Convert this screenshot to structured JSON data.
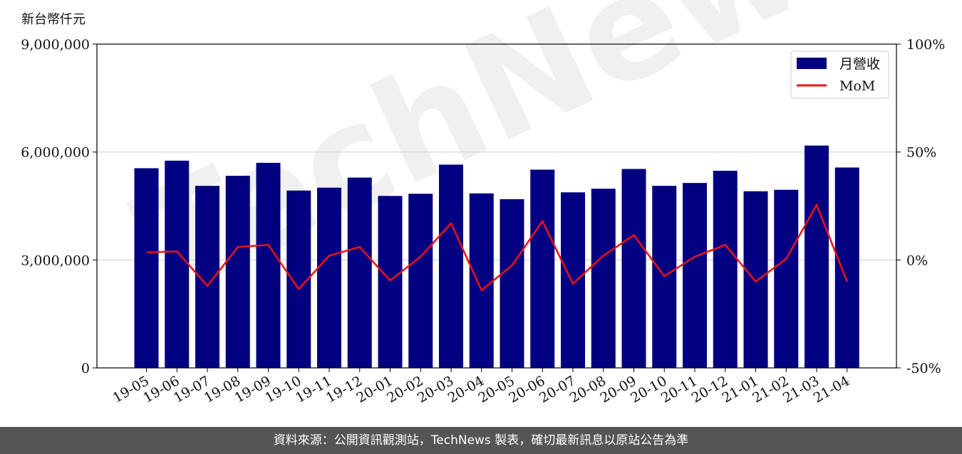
{
  "chart_data": {
    "type": "bar",
    "ylabel_left": "新台幣仟元",
    "categories": [
      "19-05",
      "19-06",
      "19-07",
      "19-08",
      "19-09",
      "19-10",
      "19-11",
      "19-12",
      "20-01",
      "20-02",
      "20-03",
      "20-04",
      "20-05",
      "20-06",
      "20-07",
      "20-08",
      "20-09",
      "20-10",
      "20-11",
      "20-12",
      "21-01",
      "21-02",
      "21-03",
      "21-04"
    ],
    "series": [
      {
        "name": "月營收",
        "type": "bar",
        "axis": "left",
        "values": [
          5550000,
          5760000,
          5060000,
          5340000,
          5700000,
          4930000,
          5010000,
          5290000,
          4780000,
          4840000,
          5650000,
          4850000,
          4690000,
          5510000,
          4880000,
          4980000,
          5530000,
          5060000,
          5140000,
          5480000,
          4910000,
          4950000,
          6180000,
          5570000
        ]
      },
      {
        "name": "MoM",
        "type": "line",
        "axis": "right",
        "values": [
          3.5,
          4,
          -12,
          6,
          7,
          -13.5,
          2,
          6,
          -9.5,
          1.5,
          17,
          -14,
          -2.5,
          18,
          -11,
          2,
          11.5,
          -7.5,
          1.5,
          7,
          -10,
          0.5,
          25.5,
          -10
        ]
      }
    ],
    "left_axis": {
      "min": 0,
      "max": 9000000,
      "ticks": [
        "0",
        "3,000,000",
        "6,000,000",
        "9,000,000"
      ]
    },
    "right_axis": {
      "min": -50,
      "max": 100,
      "ticks": [
        "-50%",
        "0%",
        "50%",
        "100%"
      ]
    },
    "grid": "horizontal",
    "legend_position": "top-right",
    "colors": {
      "bar": "#000080",
      "line": "#ee1111"
    }
  },
  "watermark": {
    "text": "TechNews"
  },
  "footer": {
    "text": "資料來源：公開資訊觀測站，TechNews 製表，確切最新訊息以原站公告為準"
  }
}
